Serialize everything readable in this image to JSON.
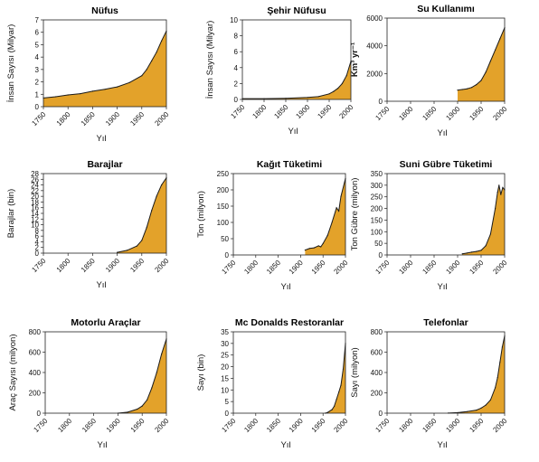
{
  "colors": {
    "fill": "#E3A22A",
    "stroke": "#1a1a1a"
  },
  "chart_data": [
    {
      "type": "area",
      "title": "Nüfus",
      "xlabel": "Yıl",
      "ylabel": "İnsan Sayısı (Milyar)",
      "xlim": [
        1750,
        2000
      ],
      "ylim": [
        0,
        7
      ],
      "xticks": [
        1750,
        1800,
        1850,
        1900,
        1950,
        2000
      ],
      "yticks": [
        0,
        1,
        2,
        3,
        4,
        5,
        6,
        7
      ],
      "x": [
        1750,
        1775,
        1800,
        1825,
        1850,
        1875,
        1900,
        1925,
        1950,
        1960,
        1970,
        1980,
        1990,
        2000
      ],
      "values": [
        0.7,
        0.8,
        0.95,
        1.05,
        1.25,
        1.4,
        1.6,
        1.95,
        2.5,
        3.0,
        3.7,
        4.4,
        5.3,
        6.1
      ]
    },
    {
      "type": "area",
      "title": "Şehir Nüfusu",
      "xlabel": "Yıl",
      "ylabel": "İnsan Sayısı (Milyar)",
      "xlim": [
        1750,
        2000
      ],
      "ylim": [
        0,
        10
      ],
      "xticks": [
        1750,
        1800,
        1850,
        1900,
        1950,
        2000
      ],
      "yticks": [
        0,
        2,
        4,
        6,
        8,
        10
      ],
      "x": [
        1750,
        1800,
        1850,
        1900,
        1925,
        1950,
        1960,
        1970,
        1980,
        1990,
        2000
      ],
      "values": [
        0.1,
        0.1,
        0.15,
        0.25,
        0.35,
        0.7,
        1.0,
        1.4,
        2.0,
        3.0,
        4.8
      ]
    },
    {
      "type": "area",
      "title": "Su Kullanımı",
      "xlabel": "Yıl",
      "ylabel": "Km³ yr⁻¹",
      "xlim": [
        1750,
        2000
      ],
      "ylim": [
        0,
        6000
      ],
      "xticks": [
        1750,
        1800,
        1850,
        1900,
        1950,
        2000
      ],
      "yticks": [
        0,
        2000,
        4000,
        6000
      ],
      "x": [
        1900,
        1910,
        1920,
        1930,
        1940,
        1950,
        1960,
        1970,
        1980,
        1990,
        2000
      ],
      "values": [
        800,
        850,
        900,
        1000,
        1200,
        1500,
        2100,
        2900,
        3700,
        4500,
        5300
      ]
    },
    {
      "type": "area",
      "title": "Barajlar",
      "xlabel": "Yıl",
      "ylabel": "Barajlar (bin)",
      "xlim": [
        1750,
        2000
      ],
      "ylim": [
        0,
        28
      ],
      "xticks": [
        1750,
        1800,
        1850,
        1900,
        1950,
        2000
      ],
      "yticks": [
        0,
        2,
        4,
        6,
        8,
        10,
        12,
        14,
        16,
        18,
        20,
        22,
        24,
        26,
        28
      ],
      "x": [
        1900,
        1920,
        1940,
        1950,
        1960,
        1970,
        1980,
        1990,
        2000
      ],
      "values": [
        0.3,
        1,
        2.5,
        4.5,
        9,
        15,
        20,
        24,
        26.5
      ]
    },
    {
      "type": "area",
      "title": "Kağıt Tüketimi",
      "xlabel": "Yıl",
      "ylabel": "Ton  (milyon)",
      "xlim": [
        1750,
        2000
      ],
      "ylim": [
        0,
        250
      ],
      "xticks": [
        1750,
        1800,
        1850,
        1900,
        1950,
        2000
      ],
      "yticks": [
        0,
        50,
        100,
        150,
        200,
        250
      ],
      "x": [
        1910,
        1920,
        1930,
        1940,
        1945,
        1950,
        1960,
        1970,
        1980,
        1985,
        1990,
        2000
      ],
      "values": [
        15,
        20,
        22,
        28,
        25,
        35,
        60,
        100,
        145,
        135,
        180,
        235
      ]
    },
    {
      "type": "area",
      "title": "Suni Gübre Tüketimi",
      "xlabel": "Yıl",
      "ylabel": "Ton Gübre (milyon)",
      "xlim": [
        1750,
        2000
      ],
      "ylim": [
        0,
        350
      ],
      "xticks": [
        1750,
        1800,
        1850,
        1900,
        1950,
        2000
      ],
      "yticks": [
        0,
        50,
        100,
        150,
        200,
        250,
        300,
        350
      ],
      "x": [
        1910,
        1920,
        1930,
        1940,
        1950,
        1960,
        1970,
        1980,
        1985,
        1988,
        1992,
        1996,
        2000
      ],
      "values": [
        5,
        8,
        12,
        15,
        20,
        40,
        90,
        200,
        270,
        300,
        260,
        290,
        280
      ]
    },
    {
      "type": "area",
      "title": "Motorlu Araçlar",
      "xlabel": "Yıl",
      "ylabel": "Araç Sayısı (milyon)",
      "xlim": [
        1750,
        2000
      ],
      "ylim": [
        0,
        800
      ],
      "xticks": [
        1750,
        1800,
        1850,
        1900,
        1950,
        2000
      ],
      "yticks": [
        0,
        200,
        400,
        600,
        800
      ],
      "x": [
        1900,
        1920,
        1940,
        1950,
        1960,
        1970,
        1980,
        1990,
        2000
      ],
      "values": [
        0,
        10,
        40,
        70,
        130,
        250,
        400,
        580,
        730
      ]
    },
    {
      "type": "area",
      "title": "Mc Donalds Restoranlar",
      "xlabel": "Yıl",
      "ylabel": "Sayı (bin)",
      "xlim": [
        1750,
        2000
      ],
      "ylim": [
        0,
        35
      ],
      "xticks": [
        1750,
        1800,
        1850,
        1900,
        1950,
        2000
      ],
      "yticks": [
        0,
        5,
        10,
        15,
        20,
        25,
        30,
        35
      ],
      "x": [
        1955,
        1960,
        1970,
        1975,
        1980,
        1985,
        1990,
        1995,
        2000
      ],
      "values": [
        0,
        0.3,
        1.5,
        3,
        6,
        9,
        12,
        19,
        30
      ]
    },
    {
      "type": "area",
      "title": "Telefonlar",
      "xlabel": "Yıl",
      "ylabel": "Sayı (milyon)",
      "xlim": [
        1750,
        2000
      ],
      "ylim": [
        0,
        800
      ],
      "xticks": [
        1750,
        1800,
        1850,
        1900,
        1950,
        2000
      ],
      "yticks": [
        0,
        200,
        400,
        600,
        800
      ],
      "x": [
        1880,
        1900,
        1920,
        1940,
        1950,
        1960,
        1970,
        1980,
        1985,
        1990,
        1995,
        2000
      ],
      "values": [
        1,
        5,
        15,
        30,
        50,
        80,
        130,
        250,
        350,
        500,
        650,
        760
      ]
    }
  ]
}
